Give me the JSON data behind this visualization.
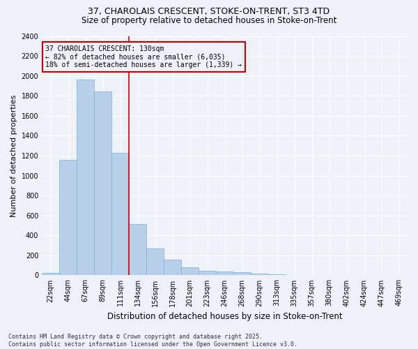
{
  "title_line1": "37, CHAROLAIS CRESCENT, STOKE-ON-TRENT, ST3 4TD",
  "title_line2": "Size of property relative to detached houses in Stoke-on-Trent",
  "xlabel": "Distribution of detached houses by size in Stoke-on-Trent",
  "ylabel": "Number of detached properties",
  "categories": [
    "22sqm",
    "44sqm",
    "67sqm",
    "89sqm",
    "111sqm",
    "134sqm",
    "156sqm",
    "178sqm",
    "201sqm",
    "223sqm",
    "246sqm",
    "268sqm",
    "290sqm",
    "313sqm",
    "335sqm",
    "357sqm",
    "380sqm",
    "402sqm",
    "424sqm",
    "447sqm",
    "469sqm"
  ],
  "values": [
    25,
    1155,
    1960,
    1845,
    1230,
    515,
    270,
    155,
    80,
    45,
    40,
    30,
    15,
    10,
    5,
    5,
    3,
    3,
    2,
    2,
    1
  ],
  "bar_color": "#b8d0ea",
  "bar_edge_color": "#7aaed4",
  "vline_color": "#cc0000",
  "vline_pos": 4.5,
  "annotation_text": "37 CHAROLAIS CRESCENT: 130sqm\n← 82% of detached houses are smaller (6,035)\n18% of semi-detached houses are larger (1,339) →",
  "annotation_box_color": "#cc0000",
  "annotation_bg": "#eef2f8",
  "ylim": [
    0,
    2400
  ],
  "yticks": [
    0,
    200,
    400,
    600,
    800,
    1000,
    1200,
    1400,
    1600,
    1800,
    2000,
    2200,
    2400
  ],
  "footer_line1": "Contains HM Land Registry data © Crown copyright and database right 2025.",
  "footer_line2": "Contains public sector information licensed under the Open Government Licence v3.0.",
  "background_color": "#eef2f8",
  "grid_color": "#ffffff",
  "title_fontsize": 9,
  "subtitle_fontsize": 8.5,
  "ylabel_fontsize": 8,
  "xlabel_fontsize": 8.5,
  "tick_fontsize": 7,
  "footer_fontsize": 6,
  "annotation_fontsize": 7
}
